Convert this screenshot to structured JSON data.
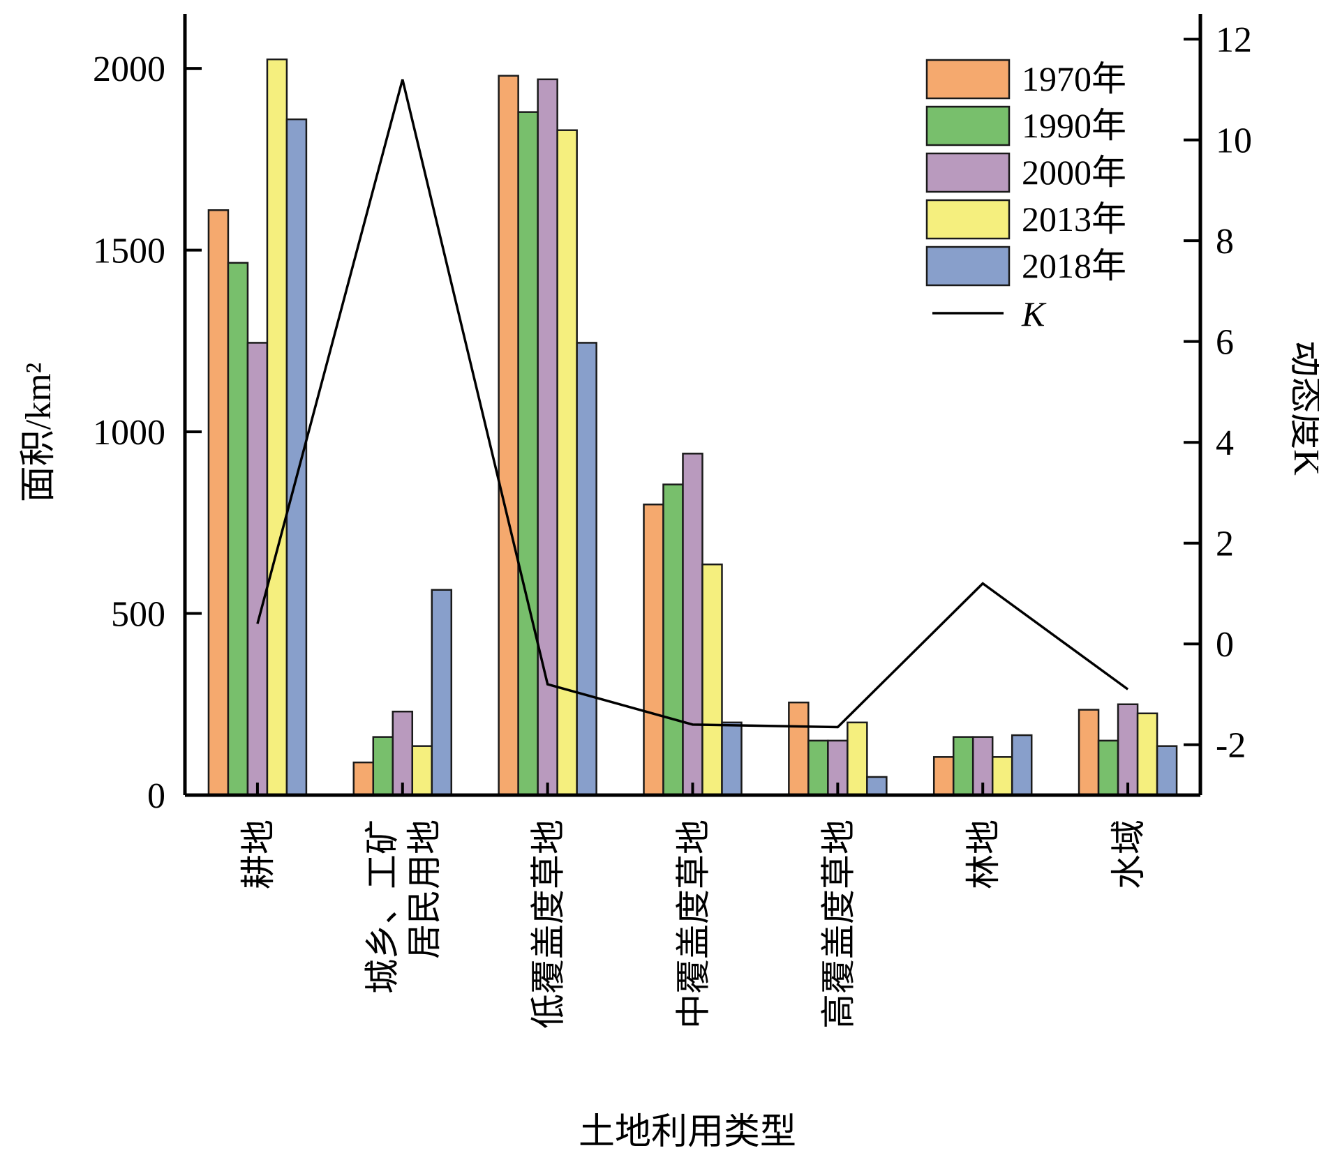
{
  "chart_data": {
    "type": "bar",
    "xlabel": "土地利用类型",
    "ylabel": "面积/km²",
    "ylabel_right": "动态度K",
    "ylim": [
      0,
      2150
    ],
    "ylim_right": [
      -3,
      12.5
    ],
    "yticks": [
      0,
      500,
      1000,
      1500,
      2000
    ],
    "yticks_right": [
      -2,
      0,
      2,
      4,
      6,
      8,
      10,
      12
    ],
    "ytick_labels_right": [
      "-2",
      "0",
      "2",
      "4",
      "6",
      "8",
      "10",
      "12"
    ],
    "categories": [
      [
        "耕地"
      ],
      [
        "城乡、工矿",
        "居民用地"
      ],
      [
        "低覆盖度草地"
      ],
      [
        "中覆盖度草地"
      ],
      [
        "高覆盖度草地"
      ],
      [
        "林地"
      ],
      [
        "水域"
      ]
    ],
    "series": [
      {
        "name": "1970年",
        "color": "#F5A96E",
        "values": [
          1610,
          90,
          1980,
          800,
          255,
          105,
          235
        ]
      },
      {
        "name": "1990年",
        "color": "#78BF6C",
        "values": [
          1465,
          160,
          1880,
          855,
          150,
          160,
          150
        ]
      },
      {
        "name": "2000年",
        "color": "#B99ABE",
        "values": [
          1245,
          230,
          1970,
          940,
          150,
          160,
          250
        ]
      },
      {
        "name": "2013年",
        "color": "#F5EF7E",
        "values": [
          2025,
          135,
          1830,
          635,
          200,
          105,
          225
        ]
      },
      {
        "name": "2018年",
        "color": "#889FCB",
        "values": [
          1860,
          565,
          1245,
          200,
          50,
          165,
          135
        ]
      }
    ],
    "line_series": {
      "name": "K",
      "axis": "right",
      "color": "#000000",
      "values": [
        0.4,
        11.2,
        -0.8,
        -1.6,
        -1.65,
        1.2,
        -0.9
      ]
    },
    "legend_position": "top-right",
    "grid": false
  }
}
